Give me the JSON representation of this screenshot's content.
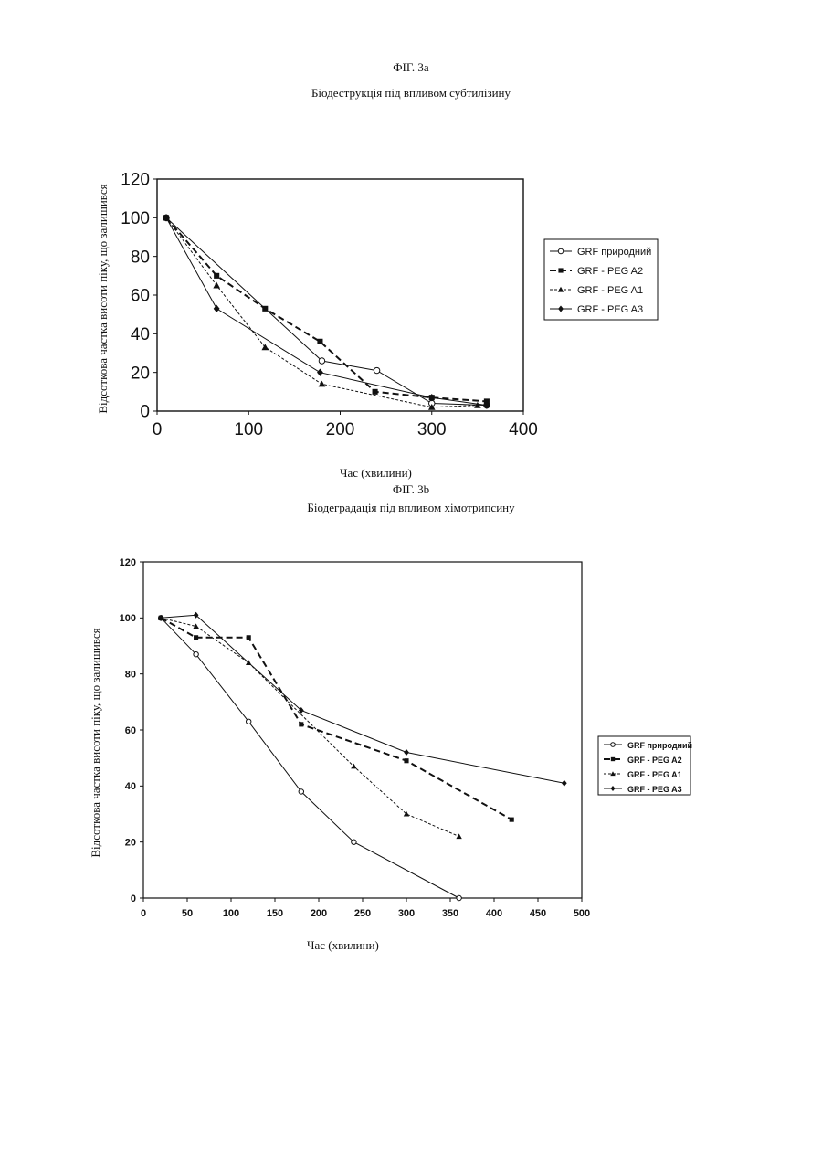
{
  "figures": [
    {
      "fig_label": "ФІГ. 3а",
      "caption": "Біодеструкція під впливом субтилізину"
    },
    {
      "fig_label": "ФІГ. 3b",
      "caption": "Біодеградація під впливом хімотрипсину"
    }
  ],
  "chart_data": [
    {
      "type": "line",
      "title": "",
      "xlabel": "Час (хвилини)",
      "ylabel": "Відсоткова частка висоти піку, що залишився",
      "xlim": [
        0,
        400
      ],
      "ylim": [
        0,
        120
      ],
      "xticks": [
        0,
        100,
        200,
        300,
        400
      ],
      "yticks": [
        0,
        20,
        40,
        60,
        80,
        100,
        120
      ],
      "legend_position": "right",
      "series": [
        {
          "name": "GRF  природний",
          "marker": "circle-open",
          "dash": "solid",
          "x": [
            10,
            180,
            240,
            300,
            360
          ],
          "y": [
            100,
            26,
            21,
            4,
            3
          ]
        },
        {
          "name": "GRF - PEG  A2",
          "marker": "square",
          "dash": "bold-dash",
          "x": [
            10,
            65,
            118,
            178,
            238,
            300,
            360
          ],
          "y": [
            100,
            70,
            53,
            36,
            10,
            7,
            5
          ]
        },
        {
          "name": "GRF - PEG  A1",
          "marker": "triangle",
          "dash": "fine-dash",
          "x": [
            10,
            65,
            118,
            180,
            300,
            350
          ],
          "y": [
            100,
            65,
            33,
            14,
            2,
            3
          ]
        },
        {
          "name": "GRF - PEG  A3",
          "marker": "diamond",
          "dash": "solid",
          "x": [
            10,
            65,
            178,
            300,
            360
          ],
          "y": [
            100,
            53,
            20,
            7,
            3
          ]
        }
      ]
    },
    {
      "type": "line",
      "title": "",
      "xlabel": "Час (хвилини)",
      "ylabel": "Відсоткова частка висоти піку, що залишився",
      "xlim": [
        0,
        500
      ],
      "ylim": [
        0,
        120
      ],
      "xticks": [
        0,
        50,
        100,
        150,
        200,
        250,
        300,
        350,
        400,
        450,
        500
      ],
      "yticks": [
        0,
        20,
        40,
        60,
        80,
        100,
        120
      ],
      "legend_position": "right",
      "series": [
        {
          "name": "GRF природний",
          "marker": "circle-open",
          "dash": "solid",
          "x": [
            20,
            60,
            120,
            180,
            240,
            360
          ],
          "y": [
            100,
            87,
            63,
            38,
            20,
            0
          ]
        },
        {
          "name": "GRF - PEG  A2",
          "marker": "square",
          "dash": "bold-dash",
          "x": [
            20,
            60,
            120,
            180,
            300,
            420
          ],
          "y": [
            100,
            93,
            93,
            62,
            49,
            28
          ]
        },
        {
          "name": "GRF - PEG  A1",
          "marker": "triangle",
          "dash": "fine-dash",
          "x": [
            20,
            60,
            120,
            240,
            300,
            360
          ],
          "y": [
            100,
            97,
            84,
            47,
            30,
            22
          ]
        },
        {
          "name": "GRF - PEG  A3",
          "marker": "diamond",
          "dash": "solid",
          "x": [
            20,
            60,
            180,
            300,
            480
          ],
          "y": [
            100,
            101,
            67,
            52,
            41
          ]
        }
      ]
    }
  ]
}
